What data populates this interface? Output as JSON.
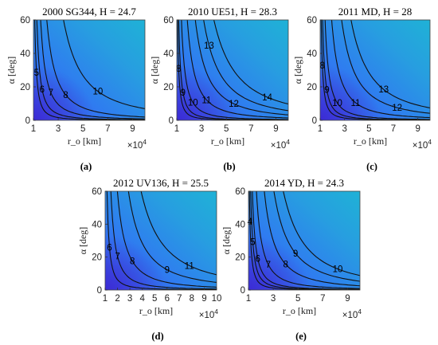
{
  "chart_data": [
    {
      "type": "contour",
      "panel_label": "(a)",
      "title": "2000 SG344, H = 24.7",
      "xlabel": "r_o [km]",
      "ylabel": "α [deg]",
      "x_multiplier": "×10^4",
      "xticks": [
        "1",
        "3",
        "5",
        "7",
        "9"
      ],
      "yticks": [
        "0",
        "20",
        "40",
        "60"
      ],
      "xlim": [
        1,
        10
      ],
      "ylim": [
        0,
        60
      ],
      "contour_levels": [
        "5",
        "6",
        "7",
        "8",
        "10"
      ],
      "colormap": "parula"
    },
    {
      "type": "contour",
      "panel_label": "(b)",
      "title": "2010 UE51, H = 28.3",
      "xlabel": "r_o [km]",
      "ylabel": "α [deg]",
      "x_multiplier": "×10^4",
      "xticks": [
        "1",
        "3",
        "5",
        "7",
        "9"
      ],
      "yticks": [
        "0",
        "20",
        "40",
        "60"
      ],
      "xlim": [
        1,
        10
      ],
      "ylim": [
        0,
        60
      ],
      "contour_levels": [
        "8",
        "9",
        "10",
        "11",
        "12",
        "13",
        "14"
      ],
      "colormap": "parula"
    },
    {
      "type": "contour",
      "panel_label": "(c)",
      "title": "2011 MD, H = 28",
      "xlabel": "r_o [km]",
      "ylabel": "α [deg]",
      "x_multiplier": "×10^4",
      "xticks": [
        "1",
        "3",
        "5",
        "7",
        "9"
      ],
      "yticks": [
        "0",
        "20",
        "40",
        "60"
      ],
      "xlim": [
        1,
        10
      ],
      "ylim": [
        0,
        60
      ],
      "contour_levels": [
        "8",
        "9",
        "10",
        "11",
        "12",
        "13"
      ],
      "colormap": "parula"
    },
    {
      "type": "contour",
      "panel_label": "(d)",
      "title": "2012 UV136, H = 25.5",
      "xlabel": "r_o [km]",
      "ylabel": "α [deg]",
      "x_multiplier": "×10^4",
      "xticks": [
        "1",
        "2",
        "3",
        "4",
        "5",
        "6",
        "7",
        "8",
        "9",
        "10"
      ],
      "yticks": [
        "0",
        "20",
        "40",
        "60"
      ],
      "xlim": [
        1,
        10
      ],
      "ylim": [
        0,
        60
      ],
      "contour_levels": [
        "6",
        "7",
        "8",
        "9",
        "11"
      ],
      "colormap": "parula"
    },
    {
      "type": "contour",
      "panel_label": "(e)",
      "title": "2014 YD, H = 24.3",
      "xlabel": "r_o [km]",
      "ylabel": "α [deg]",
      "x_multiplier": "×10^4",
      "xticks": [
        "1",
        "3",
        "5",
        "7",
        "9"
      ],
      "yticks": [
        "0",
        "20",
        "40",
        "60"
      ],
      "xlim": [
        1,
        10
      ],
      "ylim": [
        0,
        60
      ],
      "contour_levels": [
        "4",
        "5",
        "6",
        "7",
        "8",
        "9",
        "10"
      ],
      "colormap": "parula"
    }
  ]
}
